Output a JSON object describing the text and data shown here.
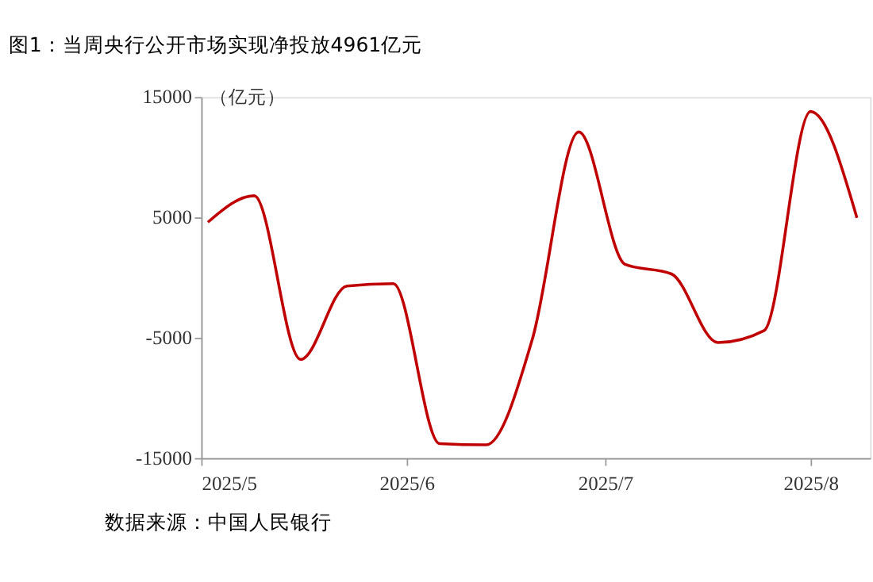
{
  "chart_data": {
    "type": "line",
    "title": "图1：当周央行公开市场实现净投放4961亿元",
    "ylabel": "（亿元）",
    "annotations": [
      "数据来源：中国人民银行"
    ],
    "x": [
      "2025-05-02",
      "2025-05-09",
      "2025-05-16",
      "2025-05-23",
      "2025-05-30",
      "2025-06-06",
      "2025-06-13",
      "2025-06-20",
      "2025-06-27",
      "2025-07-04",
      "2025-07-11",
      "2025-07-18",
      "2025-07-25",
      "2025-08-01",
      "2025-08-08"
    ],
    "series": [
      {
        "color": "#c00000",
        "values": [
          4600,
          6800,
          -6800,
          -700,
          -500,
          -13800,
          -13900,
          -5100,
          12100,
          1100,
          300,
          -5400,
          -4400,
          13800,
          4961
        ]
      }
    ],
    "xlim": [
      "2025-05-01",
      "2025-08-10"
    ],
    "xticks": [
      {
        "value": "2025-05-01",
        "label": "2025/5"
      },
      {
        "value": "2025-06-01",
        "label": "2025/6"
      },
      {
        "value": "2025-07-01",
        "label": "2025/7"
      },
      {
        "value": "2025-08-01",
        "label": "2025/8"
      }
    ],
    "ylim": [
      -15000,
      15000
    ],
    "yticks": [
      -15000,
      -5000,
      5000,
      15000
    ],
    "grid": false,
    "marker": "none",
    "line_style": "solid"
  }
}
